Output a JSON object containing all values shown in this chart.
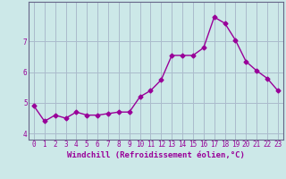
{
  "x": [
    0,
    1,
    2,
    3,
    4,
    5,
    6,
    7,
    8,
    9,
    10,
    11,
    12,
    13,
    14,
    15,
    16,
    17,
    18,
    19,
    20,
    21,
    22,
    23
  ],
  "y": [
    4.9,
    4.4,
    4.6,
    4.5,
    4.7,
    4.6,
    4.6,
    4.65,
    4.7,
    4.7,
    5.2,
    5.4,
    5.75,
    6.55,
    6.55,
    6.55,
    6.8,
    7.8,
    7.6,
    7.05,
    6.35,
    6.05,
    5.8,
    5.4
  ],
  "line_color": "#990099",
  "marker": "D",
  "markersize": 2.5,
  "linewidth": 1.0,
  "xlabel": "Windchill (Refroidissement éolien,°C)",
  "ylim": [
    3.8,
    8.3
  ],
  "xlim": [
    -0.5,
    23.5
  ],
  "yticks": [
    4,
    5,
    6,
    7
  ],
  "xticks": [
    0,
    1,
    2,
    3,
    4,
    5,
    6,
    7,
    8,
    9,
    10,
    11,
    12,
    13,
    14,
    15,
    16,
    17,
    18,
    19,
    20,
    21,
    22,
    23
  ],
  "bg_color": "#cce8e8",
  "grid_color": "#aabbcc",
  "spine_color": "#666688",
  "xlabel_fontsize": 6.5,
  "tick_fontsize": 5.5
}
